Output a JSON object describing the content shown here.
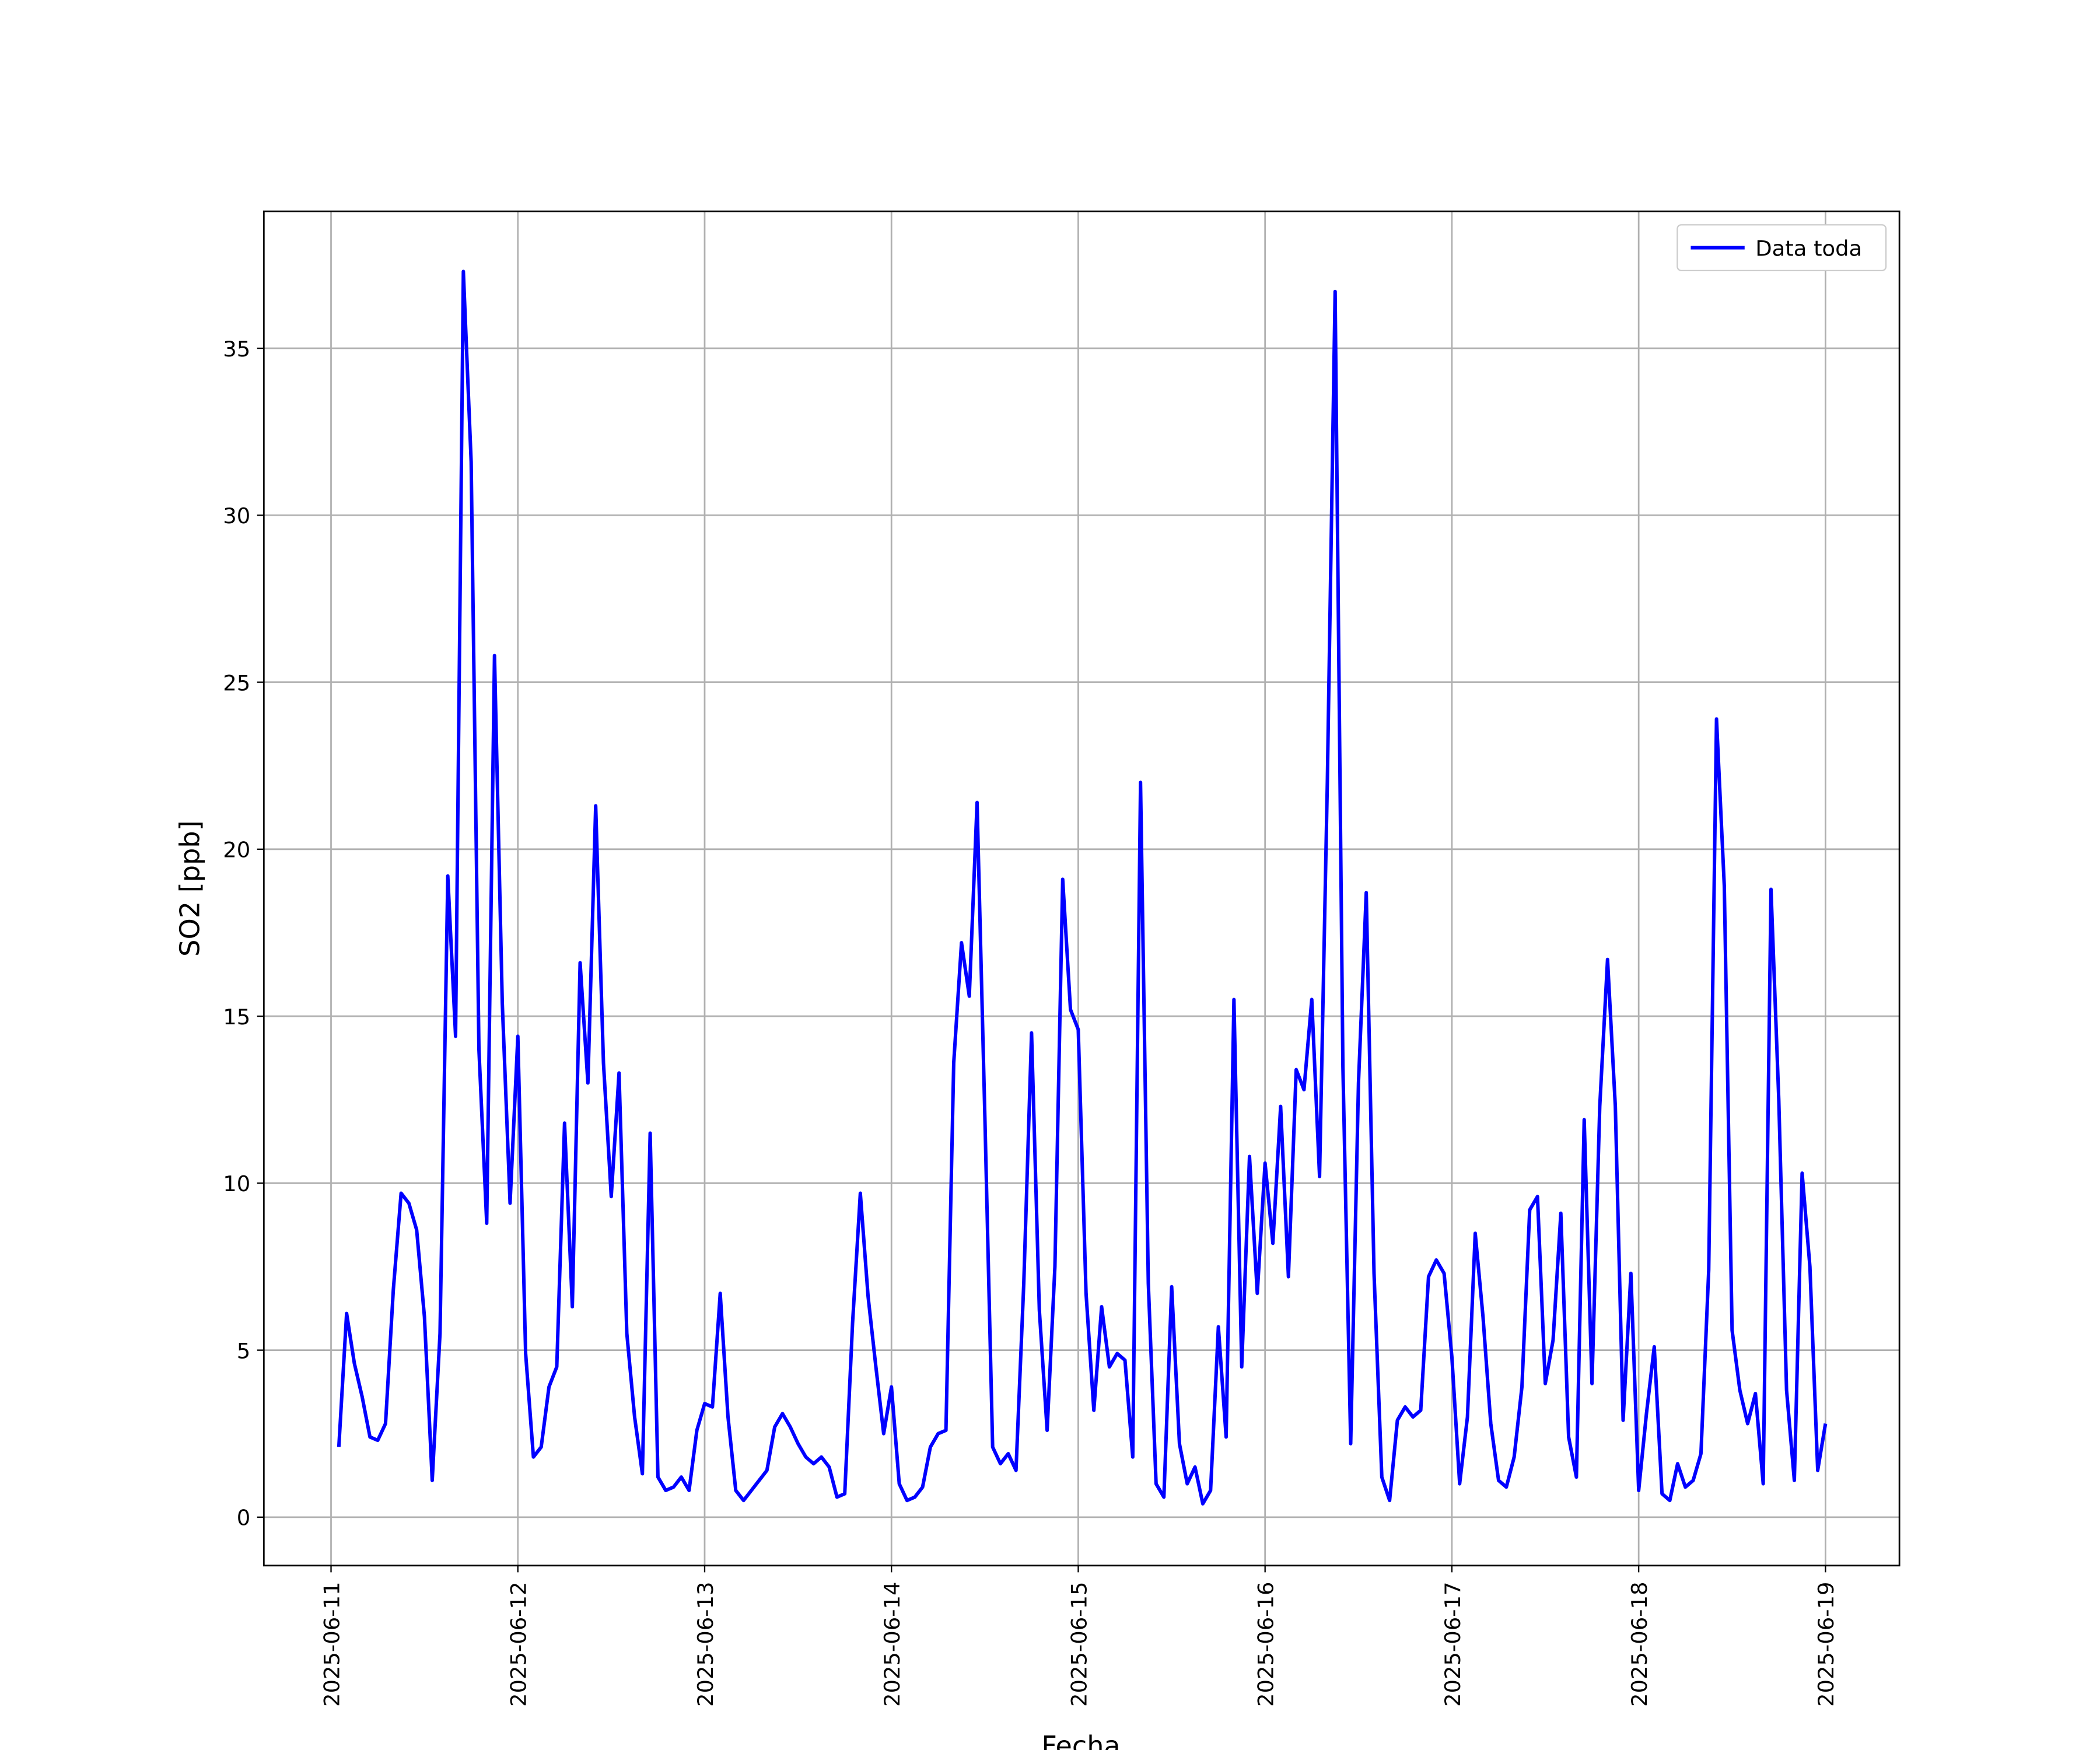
{
  "chart_data": {
    "type": "line",
    "xlabel": "Fecha",
    "ylabel": "SO2 [ppb]",
    "x": [
      "2025-06-11T01:00",
      "2025-06-11T02:00",
      "2025-06-11T03:00",
      "2025-06-11T04:00",
      "2025-06-11T05:00",
      "2025-06-11T06:00",
      "2025-06-11T07:00",
      "2025-06-11T08:00",
      "2025-06-11T09:00",
      "2025-06-11T10:00",
      "2025-06-11T11:00",
      "2025-06-11T12:00",
      "2025-06-11T13:00",
      "2025-06-11T14:00",
      "2025-06-11T15:00",
      "2025-06-11T16:00",
      "2025-06-11T17:00",
      "2025-06-11T18:00",
      "2025-06-11T19:00",
      "2025-06-11T20:00",
      "2025-06-11T21:00",
      "2025-06-11T22:00",
      "2025-06-11T23:00",
      "2025-06-12T00:00",
      "2025-06-12T01:00",
      "2025-06-12T02:00",
      "2025-06-12T03:00",
      "2025-06-12T04:00",
      "2025-06-12T05:00",
      "2025-06-12T06:00",
      "2025-06-12T07:00",
      "2025-06-12T08:00",
      "2025-06-12T09:00",
      "2025-06-12T10:00",
      "2025-06-12T11:00",
      "2025-06-12T12:00",
      "2025-06-12T13:00",
      "2025-06-12T14:00",
      "2025-06-12T15:00",
      "2025-06-12T16:00",
      "2025-06-12T17:00",
      "2025-06-12T18:00",
      "2025-06-12T19:00",
      "2025-06-12T20:00",
      "2025-06-12T21:00",
      "2025-06-12T22:00",
      "2025-06-12T23:00",
      "2025-06-13T00:00",
      "2025-06-13T01:00",
      "2025-06-13T02:00",
      "2025-06-13T03:00",
      "2025-06-13T04:00",
      "2025-06-13T05:00",
      "2025-06-13T06:00",
      "2025-06-13T07:00",
      "2025-06-13T08:00",
      "2025-06-13T09:00",
      "2025-06-13T10:00",
      "2025-06-13T11:00",
      "2025-06-13T12:00",
      "2025-06-13T13:00",
      "2025-06-13T14:00",
      "2025-06-13T15:00",
      "2025-06-13T16:00",
      "2025-06-13T17:00",
      "2025-06-13T18:00",
      "2025-06-13T19:00",
      "2025-06-13T20:00",
      "2025-06-13T21:00",
      "2025-06-13T22:00",
      "2025-06-13T23:00",
      "2025-06-14T00:00",
      "2025-06-14T01:00",
      "2025-06-14T02:00",
      "2025-06-14T03:00",
      "2025-06-14T04:00",
      "2025-06-14T05:00",
      "2025-06-14T06:00",
      "2025-06-14T07:00",
      "2025-06-14T08:00",
      "2025-06-14T09:00",
      "2025-06-14T10:00",
      "2025-06-14T11:00",
      "2025-06-14T12:00",
      "2025-06-14T13:00",
      "2025-06-14T14:00",
      "2025-06-14T15:00",
      "2025-06-14T16:00",
      "2025-06-14T17:00",
      "2025-06-14T18:00",
      "2025-06-14T19:00",
      "2025-06-14T20:00",
      "2025-06-14T21:00",
      "2025-06-14T22:00",
      "2025-06-14T23:00",
      "2025-06-15T00:00",
      "2025-06-15T01:00",
      "2025-06-15T02:00",
      "2025-06-15T03:00",
      "2025-06-15T04:00",
      "2025-06-15T05:00",
      "2025-06-15T06:00",
      "2025-06-15T07:00",
      "2025-06-15T08:00",
      "2025-06-15T09:00",
      "2025-06-15T10:00",
      "2025-06-15T11:00",
      "2025-06-15T12:00",
      "2025-06-15T13:00",
      "2025-06-15T14:00",
      "2025-06-15T15:00",
      "2025-06-15T16:00",
      "2025-06-15T17:00",
      "2025-06-15T18:00",
      "2025-06-15T19:00",
      "2025-06-15T20:00",
      "2025-06-15T21:00",
      "2025-06-15T22:00",
      "2025-06-15T23:00",
      "2025-06-16T00:00",
      "2025-06-16T01:00",
      "2025-06-16T02:00",
      "2025-06-16T03:00",
      "2025-06-16T04:00",
      "2025-06-16T05:00",
      "2025-06-16T06:00",
      "2025-06-16T07:00",
      "2025-06-16T08:00",
      "2025-06-16T09:00",
      "2025-06-16T10:00",
      "2025-06-16T11:00",
      "2025-06-16T12:00",
      "2025-06-16T13:00",
      "2025-06-16T14:00",
      "2025-06-16T15:00",
      "2025-06-16T16:00",
      "2025-06-16T17:00",
      "2025-06-16T18:00",
      "2025-06-16T19:00",
      "2025-06-16T20:00",
      "2025-06-16T21:00",
      "2025-06-16T22:00",
      "2025-06-16T23:00",
      "2025-06-17T00:00",
      "2025-06-17T01:00",
      "2025-06-17T02:00",
      "2025-06-17T03:00",
      "2025-06-17T04:00",
      "2025-06-17T05:00",
      "2025-06-17T06:00",
      "2025-06-17T07:00",
      "2025-06-17T08:00",
      "2025-06-17T09:00",
      "2025-06-17T10:00",
      "2025-06-17T11:00",
      "2025-06-17T12:00",
      "2025-06-17T13:00",
      "2025-06-17T14:00",
      "2025-06-17T15:00",
      "2025-06-17T16:00",
      "2025-06-17T17:00",
      "2025-06-17T18:00",
      "2025-06-17T19:00",
      "2025-06-17T20:00",
      "2025-06-17T21:00",
      "2025-06-17T22:00",
      "2025-06-17T23:00",
      "2025-06-18T00:00",
      "2025-06-18T01:00",
      "2025-06-18T02:00",
      "2025-06-18T03:00",
      "2025-06-18T04:00",
      "2025-06-18T05:00",
      "2025-06-18T06:00",
      "2025-06-18T07:00",
      "2025-06-18T08:00",
      "2025-06-18T09:00",
      "2025-06-18T10:00",
      "2025-06-18T11:00",
      "2025-06-18T12:00",
      "2025-06-18T13:00",
      "2025-06-18T14:00",
      "2025-06-18T15:00",
      "2025-06-18T16:00",
      "2025-06-18T17:00",
      "2025-06-18T18:00",
      "2025-06-18T19:00",
      "2025-06-18T20:00",
      "2025-06-18T21:00",
      "2025-06-18T22:00",
      "2025-06-18T23:00",
      "2025-06-19T00:00"
    ],
    "series": [
      {
        "name": "Data toda",
        "color": "#0000ff",
        "values": [
          2.1,
          6.1,
          4.6,
          3.6,
          2.4,
          2.3,
          2.8,
          6.8,
          9.7,
          9.4,
          8.6,
          6.0,
          1.1,
          5.5,
          19.2,
          14.4,
          37.3,
          31.6,
          14.0,
          8.8,
          25.8,
          15.4,
          9.4,
          14.4,
          4.9,
          1.8,
          2.1,
          3.9,
          4.5,
          11.8,
          6.3,
          16.6,
          13.0,
          21.3,
          13.6,
          9.6,
          13.3,
          5.5,
          3.0,
          1.3,
          11.5,
          1.2,
          0.8,
          0.9,
          1.2,
          0.8,
          2.6,
          3.4,
          3.3,
          6.7,
          3.0,
          0.8,
          0.5,
          0.8,
          1.1,
          1.4,
          2.7,
          3.1,
          2.7,
          2.2,
          1.8,
          1.6,
          1.8,
          1.5,
          0.6,
          0.7,
          5.8,
          9.7,
          6.6,
          4.5,
          2.5,
          3.9,
          1.0,
          0.5,
          0.6,
          0.9,
          2.1,
          2.5,
          2.6,
          13.6,
          17.2,
          15.6,
          21.4,
          12.0,
          2.1,
          1.6,
          1.9,
          1.4,
          7.0,
          14.5,
          6.2,
          2.6,
          7.5,
          19.1,
          15.2,
          14.6,
          6.7,
          3.2,
          6.3,
          4.5,
          4.9,
          4.7,
          1.8,
          22.0,
          7.0,
          1.0,
          0.6,
          6.9,
          2.2,
          1.0,
          1.5,
          0.4,
          0.8,
          5.7,
          2.4,
          15.5,
          4.5,
          10.8,
          6.7,
          10.6,
          8.2,
          12.3,
          7.2,
          13.4,
          12.8,
          15.5,
          10.2,
          22.0,
          36.7,
          13.5,
          2.2,
          13.0,
          18.7,
          7.3,
          1.2,
          0.5,
          2.9,
          3.3,
          3.0,
          3.2,
          7.2,
          7.7,
          7.3,
          4.8,
          1.0,
          3.0,
          8.5,
          6.0,
          2.8,
          1.1,
          0.9,
          1.8,
          3.9,
          9.2,
          9.6,
          4.0,
          5.3,
          9.1,
          2.4,
          1.2,
          11.9,
          4.0,
          12.3,
          16.7,
          12.3,
          2.9,
          7.3,
          0.8,
          3.1,
          5.1,
          0.7,
          0.5,
          1.6,
          0.9,
          1.1,
          1.9,
          7.4,
          23.9,
          18.9,
          5.6,
          3.8,
          2.8,
          3.7,
          1.0,
          18.8,
          12.5,
          3.8,
          1.1,
          10.3,
          7.5,
          1.4,
          2.8
        ]
      }
    ],
    "xlim": [
      "2025-06-10T15:22",
      "2025-06-19T09:30"
    ],
    "xticks": [
      "2025-06-11",
      "2025-06-12",
      "2025-06-13",
      "2025-06-14",
      "2025-06-15",
      "2025-06-16",
      "2025-06-17",
      "2025-06-18",
      "2025-06-19"
    ],
    "ylim": [
      -1.45,
      39.1
    ],
    "yticks": [
      0,
      5,
      10,
      15,
      20,
      25,
      30,
      35
    ],
    "grid": true,
    "legend": "upper right"
  }
}
